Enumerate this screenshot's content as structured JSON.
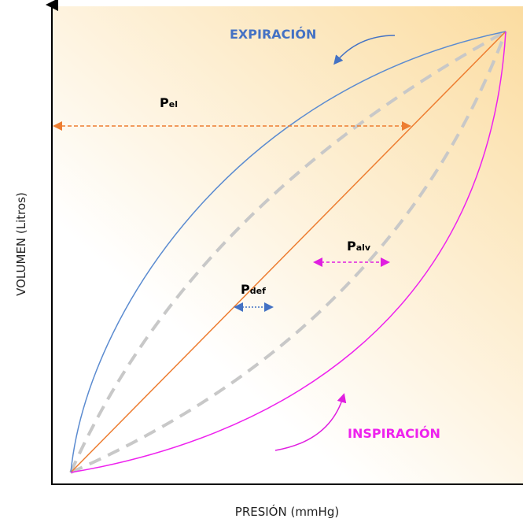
{
  "labels": {
    "expiration": "EXPIRACIÓN",
    "inspiration": "INSPIRACIÓN"
  },
  "pressures": [
    {
      "symbol": "P",
      "subscript": "el"
    },
    {
      "symbol": "P",
      "subscript": "def"
    },
    {
      "symbol": "P",
      "subscript": "alv"
    }
  ],
  "axes": {
    "y_label": "VOLUMEN (Litros)",
    "x_label": "PRESIÓN (mmHg)"
  }
}
